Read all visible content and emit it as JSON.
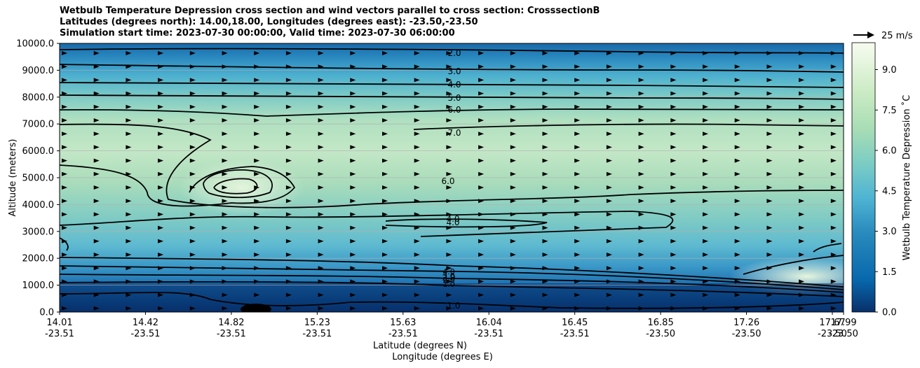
{
  "chart_data": {
    "type": "heatmap",
    "title_lines": [
      "Wetbulb Temperature Depression cross section and wind vectors parallel to cross section: CrosssectionB",
      "Latitudes (degrees north): 14.00,18.00, Longitudes (degrees east): -23.50,-23.50",
      "Simulation start time: 2023-07-30 00:00:00, Valid time: 2023-07-30 06:00:00"
    ],
    "ylabel": "Altitude (meters)",
    "xlabel_lines": [
      "Latitude (degrees N)",
      "Longitude (degrees E)"
    ],
    "ylim": [
      0,
      10000
    ],
    "y_ticks": [
      "0.0",
      "1000.0",
      "2000.0",
      "3000.0",
      "4000.0",
      "5000.0",
      "6000.0",
      "7000.0",
      "8000.0",
      "9000.0",
      "10000.0"
    ],
    "x_ticks": [
      {
        "lat": "14.01",
        "lon": "-23.51"
      },
      {
        "lat": "14.42",
        "lon": "-23.51"
      },
      {
        "lat": "14.82",
        "lon": "-23.51"
      },
      {
        "lat": "15.23",
        "lon": "-23.51"
      },
      {
        "lat": "15.63",
        "lon": "-23.51"
      },
      {
        "lat": "16.04",
        "lon": "-23.51"
      },
      {
        "lat": "16.45",
        "lon": "-23.51"
      },
      {
        "lat": "16.85",
        "lon": "-23.50"
      },
      {
        "lat": "17.26",
        "lon": "-23.50"
      },
      {
        "lat": "17.67",
        "lon": "-23.50"
      },
      {
        "lat": "17.99",
        "lon": "-23.50"
      }
    ],
    "colorbar": {
      "label": "Wetbulb Temperature Depression ˚C",
      "range": [
        0,
        10
      ],
      "ticks": [
        "0.0",
        "1.5",
        "3.0",
        "4.5",
        "6.0",
        "7.5",
        "9.0"
      ]
    },
    "quiver_key": "25 m/s",
    "contour_labels_right": [
      "2.0",
      "3.0",
      "4.0",
      "5.0",
      "6.0",
      "7.0",
      "6.0",
      "4.0",
      "4.0",
      "2.0",
      "1.0"
    ],
    "contour_labels_bottom": [
      "4.0",
      "3.0",
      "2.0",
      "1.0"
    ],
    "colors": {
      "low": "#08306b",
      "mid": "#4eb3d3",
      "high": "#f7fcf0"
    },
    "grid": "horizontal"
  }
}
